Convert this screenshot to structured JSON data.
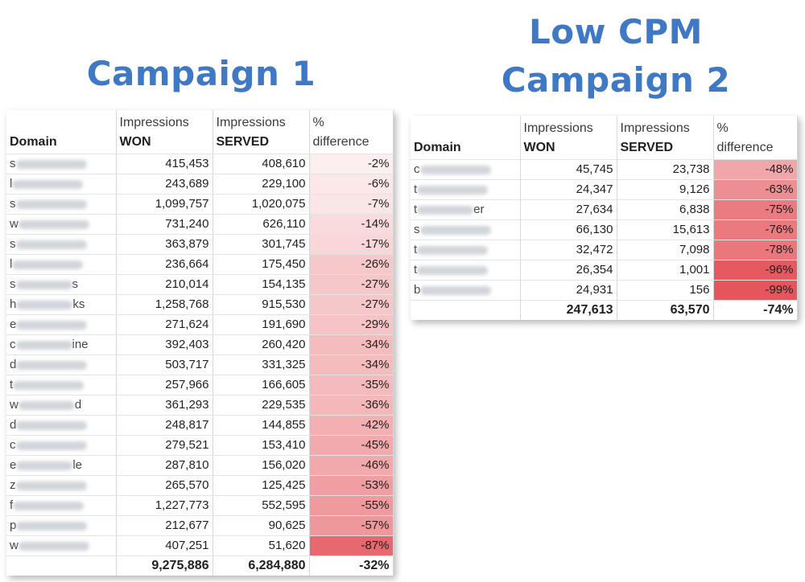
{
  "campaign1": {
    "title": "Campaign 1",
    "headers": {
      "domain": "Domain",
      "won_line1": "Impressions",
      "won_line2": "WON",
      "served_line1": "Impressions",
      "served_line2": "SERVED",
      "pct_line1": "%",
      "pct_line2": "difference"
    },
    "rows": [
      {
        "domain_prefix": "s",
        "domain_suffix": "",
        "won": "415,453",
        "served": "408,610",
        "diff": "-2%",
        "level": 0.02
      },
      {
        "domain_prefix": "l",
        "domain_suffix": "",
        "won": "243,689",
        "served": "229,100",
        "diff": "-6%",
        "level": 0.06
      },
      {
        "domain_prefix": "s",
        "domain_suffix": "",
        "won": "1,099,757",
        "served": "1,020,075",
        "diff": "-7%",
        "level": 0.07
      },
      {
        "domain_prefix": "w",
        "domain_suffix": "",
        "won": "731,240",
        "served": "626,110",
        "diff": "-14%",
        "level": 0.14
      },
      {
        "domain_prefix": "s",
        "domain_suffix": "",
        "won": "363,879",
        "served": "301,745",
        "diff": "-17%",
        "level": 0.17
      },
      {
        "domain_prefix": "l",
        "domain_suffix": "",
        "won": "236,664",
        "served": "175,450",
        "diff": "-26%",
        "level": 0.26
      },
      {
        "domain_prefix": "s",
        "domain_suffix": "s",
        "won": "210,014",
        "served": "154,135",
        "diff": "-27%",
        "level": 0.27
      },
      {
        "domain_prefix": "h",
        "domain_suffix": "ks",
        "won": "1,258,768",
        "served": "915,530",
        "diff": "-27%",
        "level": 0.27
      },
      {
        "domain_prefix": "e",
        "domain_suffix": "",
        "won": "271,624",
        "served": "191,690",
        "diff": "-29%",
        "level": 0.29
      },
      {
        "domain_prefix": "c",
        "domain_suffix": "ine",
        "won": "392,403",
        "served": "260,420",
        "diff": "-34%",
        "level": 0.34
      },
      {
        "domain_prefix": "d",
        "domain_suffix": "",
        "won": "503,717",
        "served": "331,325",
        "diff": "-34%",
        "level": 0.34
      },
      {
        "domain_prefix": "t",
        "domain_suffix": "",
        "won": "257,966",
        "served": "166,605",
        "diff": "-35%",
        "level": 0.35
      },
      {
        "domain_prefix": "w",
        "domain_suffix": "d",
        "won": "361,293",
        "served": "229,535",
        "diff": "-36%",
        "level": 0.36
      },
      {
        "domain_prefix": "d",
        "domain_suffix": "",
        "won": "248,817",
        "served": "144,855",
        "diff": "-42%",
        "level": 0.42
      },
      {
        "domain_prefix": "c",
        "domain_suffix": "",
        "won": "279,521",
        "served": "153,410",
        "diff": "-45%",
        "level": 0.45
      },
      {
        "domain_prefix": "e",
        "domain_suffix": "le",
        "won": "287,810",
        "served": "156,020",
        "diff": "-46%",
        "level": 0.46
      },
      {
        "domain_prefix": "z",
        "domain_suffix": "",
        "won": "265,570",
        "served": "125,425",
        "diff": "-53%",
        "level": 0.53
      },
      {
        "domain_prefix": "f",
        "domain_suffix": "",
        "won": "1,227,773",
        "served": "552,595",
        "diff": "-55%",
        "level": 0.55
      },
      {
        "domain_prefix": "p",
        "domain_suffix": "",
        "won": "212,677",
        "served": "90,625",
        "diff": "-57%",
        "level": 0.57
      },
      {
        "domain_prefix": "w",
        "domain_suffix": "",
        "won": "407,251",
        "served": "51,620",
        "diff": "-87%",
        "level": 0.87
      }
    ],
    "total": {
      "won": "9,275,886",
      "served": "6,284,880",
      "diff": "-32%"
    }
  },
  "campaign2": {
    "title_line1": "Low CPM",
    "title_line2": "Campaign 2",
    "headers": {
      "domain": "Domain",
      "won_line1": "Impressions",
      "won_line2": "WON",
      "served_line1": "Impressions",
      "served_line2": "SERVED",
      "pct_line1": "%",
      "pct_line2": "difference"
    },
    "rows": [
      {
        "domain_prefix": "c",
        "domain_suffix": "",
        "won": "45,745",
        "served": "23,738",
        "diff": "-48%",
        "level": 0.48
      },
      {
        "domain_prefix": "t",
        "domain_suffix": "",
        "won": "24,347",
        "served": "9,126",
        "diff": "-63%",
        "level": 0.63
      },
      {
        "domain_prefix": "t",
        "domain_suffix": "er",
        "won": "27,634",
        "served": "6,838",
        "diff": "-75%",
        "level": 0.75
      },
      {
        "domain_prefix": "s",
        "domain_suffix": "",
        "won": "66,130",
        "served": "15,613",
        "diff": "-76%",
        "level": 0.76
      },
      {
        "domain_prefix": "t",
        "domain_suffix": "",
        "won": "32,472",
        "served": "7,098",
        "diff": "-78%",
        "level": 0.78
      },
      {
        "domain_prefix": "t",
        "domain_suffix": "",
        "won": "26,354",
        "served": "1,001",
        "diff": "-96%",
        "level": 0.96
      },
      {
        "domain_prefix": "b",
        "domain_suffix": "",
        "won": "24,931",
        "served": "156",
        "diff": "-99%",
        "level": 0.99
      }
    ],
    "total": {
      "won": "247,613",
      "served": "63,570",
      "diff": "-74%"
    }
  },
  "colors": {
    "title": "#3f78c4",
    "heat_low": "#fdf1f2",
    "heat_high": "#e4545a"
  }
}
